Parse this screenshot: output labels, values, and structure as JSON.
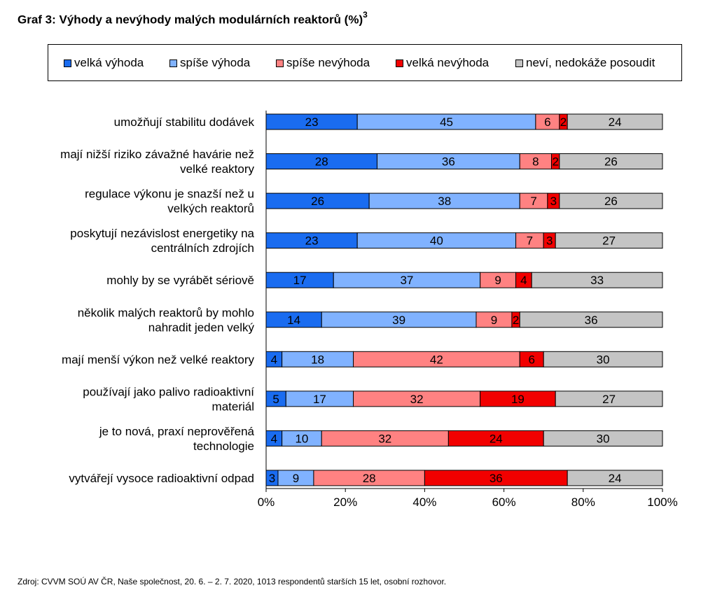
{
  "title": "Graf 3: Výhody a nevýhody malých modulárních reaktorů (%)",
  "title_sup": "3",
  "source": "Zdroj: CVVM SOÚ AV ČR, Naše společnost, 20. 6. – 2. 7. 2020, 1013 respondentů starších 15 let, osobní rozhovor.",
  "colors": {
    "velka_vyhoda": "#1a6cf0",
    "spise_vyhoda": "#80b2ff",
    "spise_nevyhoda": "#ff8282",
    "velka_nevyhoda": "#f20000",
    "nevi": "#c4c4c4"
  },
  "chart_data": {
    "type": "bar",
    "orientation": "horizontal",
    "stacked": true,
    "xlim": [
      0,
      100
    ],
    "x_ticks": [
      "0%",
      "20%",
      "40%",
      "60%",
      "80%",
      "100%"
    ],
    "legend_position": "top",
    "grid": false,
    "categories": [
      [
        "umožňují stabilitu dodávek"
      ],
      [
        "mají nižší riziko závažné havárie než",
        "velké reaktory"
      ],
      [
        "regulace výkonu je snazší než u",
        "velkých reaktorů"
      ],
      [
        "poskytují nezávislost energetiky na",
        "centrálních zdrojích"
      ],
      [
        "mohly by se vyrábět sériově"
      ],
      [
        "několik malých reaktorů by mohlo",
        "nahradit jeden velký"
      ],
      [
        "mají menší výkon než velké reaktory"
      ],
      [
        "používají jako palivo radioaktivní",
        "materiál"
      ],
      [
        "je to nová, praxí neprověřená",
        "technologie"
      ],
      [
        "vytvářejí vysoce radioaktivní odpad"
      ]
    ],
    "series": [
      {
        "name": "velká výhoda",
        "color": "#1a6cf0",
        "values": [
          23,
          28,
          26,
          23,
          17,
          14,
          4,
          5,
          4,
          3
        ]
      },
      {
        "name": "spíše výhoda",
        "color": "#80b2ff",
        "values": [
          45,
          36,
          38,
          40,
          37,
          39,
          18,
          17,
          10,
          9
        ]
      },
      {
        "name": "spíše nevýhoda",
        "color": "#ff8282",
        "values": [
          6,
          8,
          7,
          7,
          9,
          9,
          42,
          32,
          32,
          28
        ]
      },
      {
        "name": "velká nevýhoda",
        "color": "#f20000",
        "values": [
          2,
          2,
          3,
          3,
          4,
          2,
          6,
          19,
          24,
          36
        ]
      },
      {
        "name": "neví, nedokáže posoudit",
        "color": "#c4c4c4",
        "values": [
          24,
          26,
          26,
          27,
          33,
          36,
          30,
          27,
          30,
          24
        ]
      }
    ]
  }
}
